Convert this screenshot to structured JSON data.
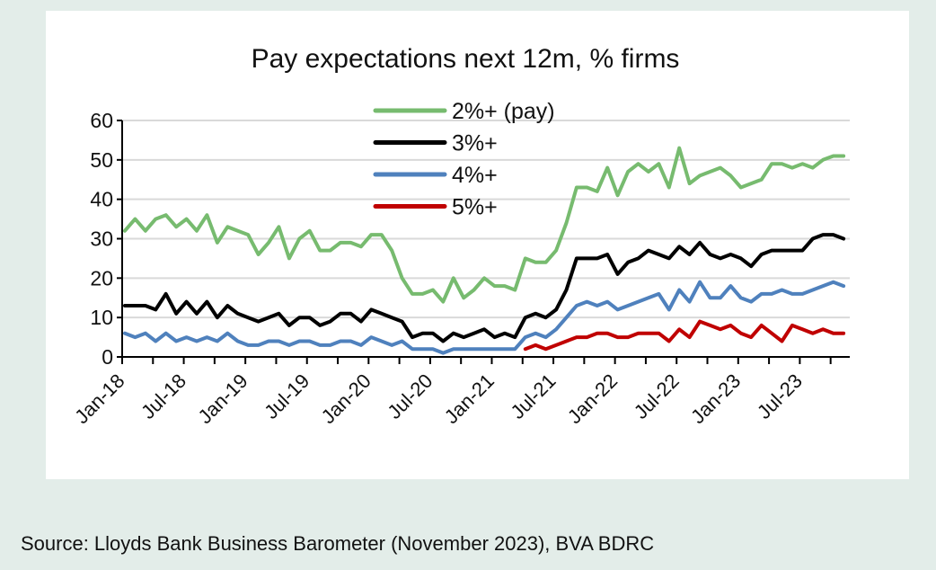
{
  "chart_data": {
    "type": "line",
    "title": "Pay expectations next 12m, % firms",
    "xlabel": "",
    "ylabel": "",
    "ylim": [
      0,
      60
    ],
    "yticks": [
      0,
      10,
      20,
      30,
      40,
      50,
      60
    ],
    "x_start": "Jan-18",
    "x_end": "Nov-23",
    "x_frequency": "monthly",
    "xtick_labels": [
      "Jan-18",
      "Jul-18",
      "Jan-19",
      "Jul-19",
      "Jan-20",
      "Jul-20",
      "Jan-21",
      "Jul-21",
      "Jan-22",
      "Jul-22",
      "Jan-23",
      "Jul-23"
    ],
    "grid": "horizontal",
    "legend": "top-center",
    "series": [
      {
        "name": "2%+ (pay)",
        "color": "#77bb6f",
        "values": [
          32,
          35,
          32,
          35,
          36,
          33,
          35,
          32,
          36,
          29,
          33,
          32,
          31,
          26,
          29,
          33,
          25,
          30,
          32,
          27,
          27,
          29,
          29,
          28,
          31,
          31,
          27,
          20,
          16,
          16,
          17,
          14,
          20,
          15,
          17,
          20,
          18,
          18,
          17,
          25,
          24,
          24,
          27,
          34,
          43,
          43,
          42,
          48,
          41,
          47,
          49,
          47,
          49,
          43,
          53,
          44,
          46,
          47,
          48,
          46,
          43,
          44,
          45,
          49,
          49,
          48,
          49,
          48,
          50,
          51,
          51
        ]
      },
      {
        "name": "3%+",
        "color": "#000000",
        "values": [
          13,
          13,
          13,
          12,
          16,
          11,
          14,
          11,
          14,
          10,
          13,
          11,
          10,
          9,
          10,
          11,
          8,
          10,
          10,
          8,
          9,
          11,
          11,
          9,
          12,
          11,
          10,
          9,
          5,
          6,
          6,
          4,
          6,
          5,
          6,
          7,
          5,
          6,
          5,
          10,
          11,
          10,
          12,
          17,
          25,
          25,
          25,
          26,
          21,
          24,
          25,
          27,
          26,
          25,
          28,
          26,
          29,
          26,
          25,
          26,
          25,
          23,
          26,
          27,
          27,
          27,
          27,
          30,
          31,
          31,
          30
        ]
      },
      {
        "name": "4%+",
        "color": "#4f81bd",
        "values": [
          6,
          5,
          6,
          4,
          6,
          4,
          5,
          4,
          5,
          4,
          6,
          4,
          3,
          3,
          4,
          4,
          3,
          4,
          4,
          3,
          3,
          4,
          4,
          3,
          5,
          4,
          3,
          4,
          2,
          2,
          2,
          1,
          2,
          2,
          2,
          2,
          2,
          2,
          2,
          5,
          6,
          5,
          7,
          10,
          13,
          14,
          13,
          14,
          12,
          13,
          14,
          15,
          16,
          12,
          17,
          14,
          19,
          15,
          15,
          18,
          15,
          14,
          16,
          16,
          17,
          16,
          16,
          17,
          18,
          19,
          18
        ]
      },
      {
        "name": "5%+",
        "color": "#c00000",
        "values": [
          null,
          null,
          null,
          null,
          null,
          null,
          null,
          null,
          null,
          null,
          null,
          null,
          null,
          null,
          null,
          null,
          null,
          null,
          null,
          null,
          null,
          null,
          null,
          null,
          null,
          null,
          null,
          null,
          null,
          null,
          null,
          null,
          null,
          null,
          null,
          null,
          null,
          null,
          null,
          2,
          3,
          2,
          3,
          4,
          5,
          5,
          6,
          6,
          5,
          5,
          6,
          6,
          6,
          4,
          7,
          5,
          9,
          8,
          7,
          8,
          6,
          5,
          8,
          6,
          4,
          8,
          7,
          6,
          7,
          6,
          6
        ]
      }
    ]
  },
  "source": "Source: Lloyds Bank Business Barometer (November 2023), BVA BDRC"
}
